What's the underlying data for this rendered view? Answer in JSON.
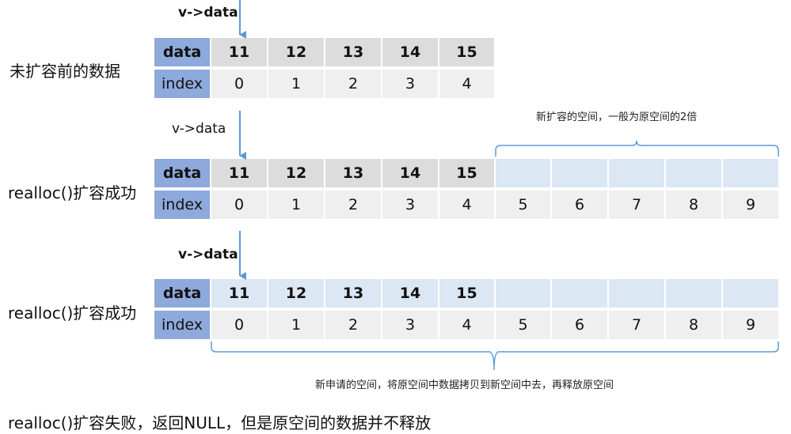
{
  "labels": {
    "row1": "未扩容前的数据",
    "row2": "realloc()扩容成功",
    "row3": "realloc()扩容成功",
    "footer": "realloc()扩容失败，返回NULL，但是原空间的数据并不释放"
  },
  "pointers": {
    "p1": "v->data",
    "p2": "v->data",
    "p3": "v->data"
  },
  "headers": {
    "data": "data",
    "index": "index"
  },
  "notes": {
    "top": "新扩容的空间，一般为原空间的2倍",
    "bottom": "新申请的空间，将原空间中数据拷贝到新空间中去，再释放原空间"
  },
  "data_values": [
    "11",
    "12",
    "13",
    "14",
    "15"
  ],
  "indices_small": [
    "0",
    "1",
    "2",
    "3",
    "4"
  ],
  "indices_full": [
    "0",
    "1",
    "2",
    "3",
    "4",
    "5",
    "6",
    "7",
    "8",
    "9"
  ],
  "colors": {
    "header": "#8ea9db",
    "data_cell": "#dcdcdc",
    "index_cell": "#efefef",
    "new_space": "#dbe7f3",
    "arrow": "#5b9bd5"
  }
}
